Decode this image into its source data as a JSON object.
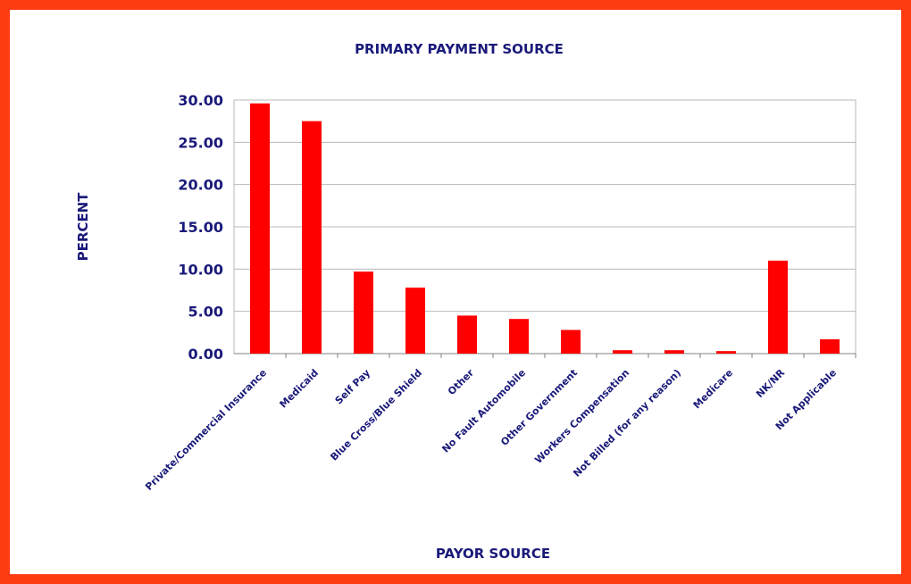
{
  "chart_data": {
    "type": "bar",
    "title": "PRIMARY PAYMENT SOURCE",
    "xlabel": "PAYOR SOURCE",
    "ylabel": "PERCENT",
    "categories": [
      "Private/Commercial Insurance",
      "Medicaid",
      "Self Pay",
      "Blue Cross/Blue Shield",
      "Other",
      "No Fault Automobile",
      "Other Government",
      "Workers Compensation",
      "Not Billed (for any reason)",
      "Medicare",
      "NK/NR",
      "Not Applicable"
    ],
    "values": [
      29.6,
      27.5,
      9.7,
      7.8,
      4.5,
      4.1,
      2.8,
      0.4,
      0.4,
      0.3,
      11.0,
      1.7
    ],
    "ylim": [
      0,
      30
    ],
    "yticks": [
      "0.00",
      "5.00",
      "10.00",
      "15.00",
      "20.00",
      "25.00",
      "30.00"
    ],
    "grid": true,
    "legend": "none",
    "bar_color": "#ff0000",
    "frame_color": "#ff3b12",
    "text_color": "#1a1a7a"
  }
}
